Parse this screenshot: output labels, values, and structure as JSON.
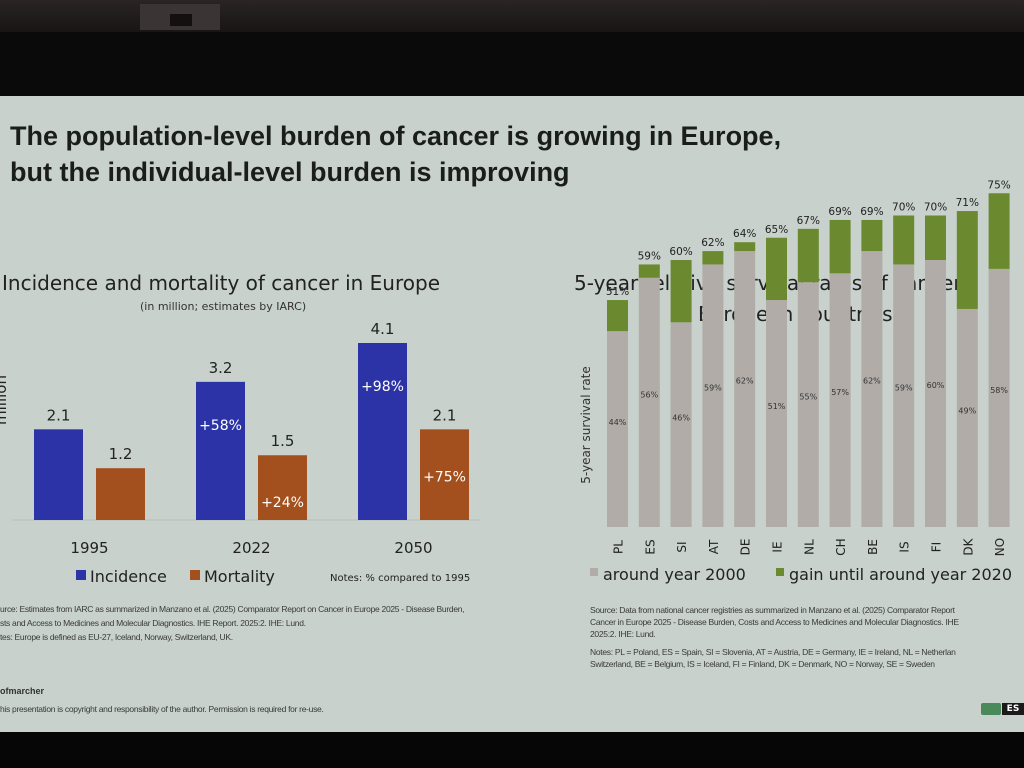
{
  "slide": {
    "title": "The population-level burden of cancer is growing in Europe,\nbut the individual-level burden is improving",
    "author_fragment": "ofmarcher",
    "copyright": "his presentation is copyright and responsibility of the author. Permission is required for re-use.",
    "logo_text": "ES"
  },
  "left_panel": {
    "source_lines": [
      "urce: Estimates from IARC as summarized in Manzano et al. (2025) Comparator Report on Cancer in Europe 2025 - Disease Burden,",
      "sts and Access to Medicines and Molecular Diagnostics. IHE Report. 2025:2. IHE: Lund.",
      "tes: Europe is defined as EU-27, Iceland, Norway, Switzerland, UK."
    ]
  },
  "right_panel": {
    "source_lines": [
      "Source: Data from national cancer registries as summarized in Manzano et al. (2025) Comparator Report",
      "Cancer in Europe 2025 - Disease Burden, Costs and Access to Medicines and Molecular Diagnostics. IHE",
      "2025:2. IHE: Lund."
    ],
    "notes_lines": [
      "Notes: PL = Poland, ES = Spain, SI = Slovenia, AT = Austria, DE = Germany, IE = Ireland, NL = Netherlan",
      "Switzerland, BE = Belgium, IS = Iceland, FI = Finland, DK = Denmark, NO = Norway, SE = Sweden"
    ]
  },
  "colors": {
    "incidence": "#2b33a6",
    "mortality": "#a3501e",
    "baseline": "#b1aca8",
    "gain": "#6b8a2f"
  },
  "chart_data": [
    {
      "type": "bar",
      "title": "Incidence and mortality of cancer in Europe",
      "subtitle": "(in million; estimates by IARC)",
      "ylabel": "million",
      "xlabel": "",
      "categories": [
        "1995",
        "2022",
        "2050"
      ],
      "series": [
        {
          "name": "Incidence",
          "values": [
            2.1,
            3.2,
            4.1
          ],
          "change_labels": [
            "",
            "+58%",
            "+98%"
          ]
        },
        {
          "name": "Mortality",
          "values": [
            1.2,
            1.5,
            2.1
          ],
          "change_labels": [
            "",
            "+24%",
            "+75%"
          ]
        }
      ],
      "ylim": [
        0,
        4.1
      ],
      "grid": false,
      "legend": "bottom",
      "note": "Notes: % compared to 1995"
    },
    {
      "type": "bar",
      "stacked": true,
      "title": "5-year relative survival rates of cancer",
      "title_line2": "European countries",
      "ylabel": "5-year survival rate",
      "xlabel": "",
      "categories": [
        "PL",
        "ES",
        "SI",
        "AT",
        "DE",
        "IE",
        "NL",
        "CH",
        "BE",
        "IS",
        "FI",
        "DK",
        "NO"
      ],
      "series": [
        {
          "name": "around year 2000",
          "values": [
            44,
            56,
            46,
            59,
            62,
            51,
            55,
            57,
            62,
            59,
            60,
            49,
            58
          ]
        },
        {
          "name": "gain until around year 2020",
          "values": [
            7,
            3,
            14,
            3,
            2,
            14,
            12,
            12,
            7,
            11,
            10,
            22,
            17
          ]
        }
      ],
      "totals_labels": [
        "51%",
        "59%",
        "60%",
        "62%",
        "64%",
        "65%",
        "67%",
        "69%",
        "69%",
        "70%",
        "70%",
        "71%",
        "75%"
      ],
      "base_labels": [
        "44%",
        "56%",
        "46%",
        "59%",
        "62%",
        "51%",
        "55%",
        "57%",
        "62%",
        "59%",
        "60%",
        "49%",
        "58%"
      ],
      "ylim": [
        0,
        100
      ],
      "grid": false,
      "legend": "bottom"
    }
  ]
}
